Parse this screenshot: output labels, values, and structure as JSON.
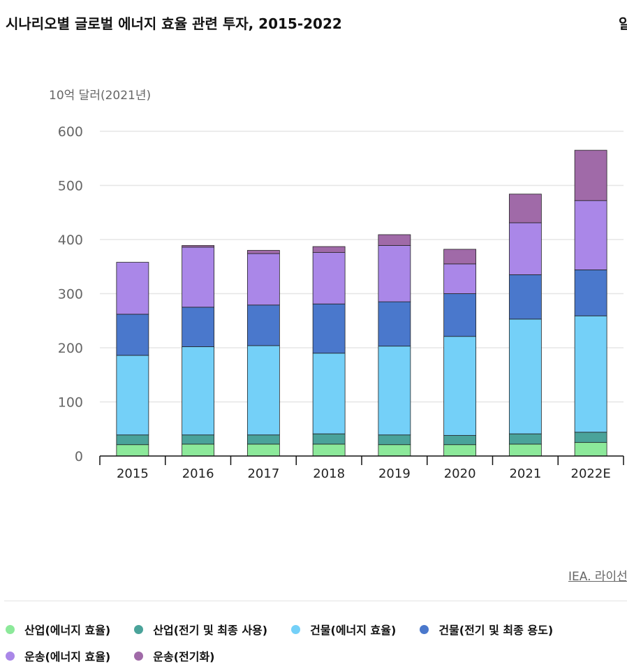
{
  "header": {
    "title": "시나리오별 글로벌 에너지 효율 관련 투자, 2015-2022",
    "cut_label": "알"
  },
  "source": "IEA. 라이선",
  "chart_data": {
    "type": "bar",
    "stacked": true,
    "title": "시나리오별 글로벌 에너지 효율 관련 투자, 2015-2022",
    "ylabel": "10억 달러(2021년)",
    "xlabel": "",
    "ylim": [
      0,
      600
    ],
    "yticks": [
      0,
      100,
      200,
      300,
      400,
      500,
      600
    ],
    "grid": true,
    "legend_position": "bottom",
    "categories": [
      "2015",
      "2016",
      "2017",
      "2018",
      "2019",
      "2020",
      "2021",
      "2022E"
    ],
    "series": [
      {
        "name": "산업(에너지 효율)",
        "color": "#8ce99a",
        "values": [
          21,
          22,
          22,
          22,
          21,
          21,
          22,
          25
        ]
      },
      {
        "name": "산업(전기 및 최종 사용)",
        "color": "#4aa39a",
        "values": [
          18,
          17,
          17,
          19,
          18,
          17,
          19,
          19
        ]
      },
      {
        "name": "건물(에너지 효율)",
        "color": "#74d0f8",
        "values": [
          147,
          163,
          165,
          149,
          164,
          183,
          212,
          215
        ]
      },
      {
        "name": "건물(전기 및 최종 용도)",
        "color": "#4a78cc",
        "values": [
          76,
          73,
          75,
          91,
          82,
          79,
          82,
          85
        ]
      },
      {
        "name": "운송(에너지 효율)",
        "color": "#aa87e8",
        "values": [
          96,
          111,
          95,
          95,
          104,
          55,
          96,
          128
        ]
      },
      {
        "name": "운송(전기화)",
        "color": "#a06aa8",
        "values": [
          0,
          3,
          6,
          11,
          20,
          27,
          53,
          93
        ]
      }
    ]
  }
}
